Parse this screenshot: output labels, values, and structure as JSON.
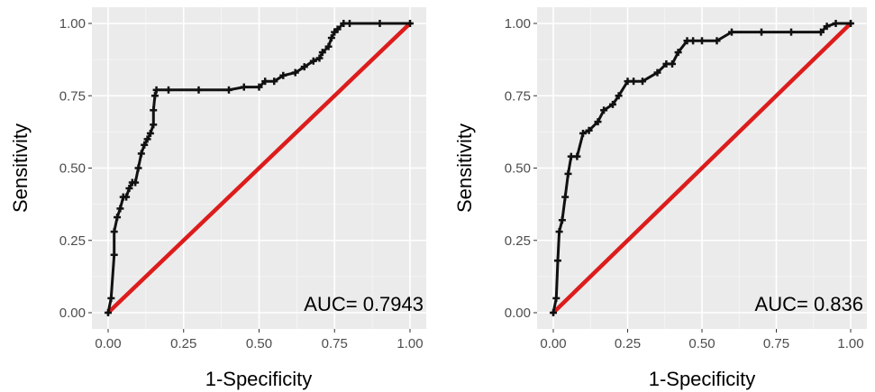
{
  "chart_data": [
    {
      "type": "line",
      "xlabel": "1-Specificity",
      "ylabel": "Sensitivity",
      "xlim": [
        0,
        1
      ],
      "ylim": [
        0,
        1
      ],
      "xticks": [
        "0.00",
        "0.25",
        "0.50",
        "0.75",
        "1.00"
      ],
      "yticks": [
        "0.00",
        "0.25",
        "0.50",
        "0.75",
        "1.00"
      ],
      "grid": true,
      "annotation": "AUC= 0.7943",
      "series": [
        {
          "color": "#111111",
          "marker": "plus",
          "x": [
            0.0,
            0.01,
            0.02,
            0.02,
            0.03,
            0.04,
            0.05,
            0.06,
            0.07,
            0.08,
            0.09,
            0.1,
            0.11,
            0.12,
            0.13,
            0.14,
            0.15,
            0.15,
            0.155,
            0.16,
            0.2,
            0.3,
            0.4,
            0.45,
            0.5,
            0.52,
            0.55,
            0.58,
            0.62,
            0.65,
            0.68,
            0.7,
            0.71,
            0.73,
            0.74,
            0.75,
            0.76,
            0.78,
            0.8,
            0.9,
            1.0
          ],
          "y": [
            0.0,
            0.05,
            0.2,
            0.28,
            0.33,
            0.36,
            0.4,
            0.4,
            0.43,
            0.45,
            0.45,
            0.5,
            0.55,
            0.58,
            0.6,
            0.62,
            0.65,
            0.7,
            0.75,
            0.77,
            0.77,
            0.77,
            0.77,
            0.78,
            0.78,
            0.8,
            0.8,
            0.82,
            0.83,
            0.85,
            0.87,
            0.88,
            0.9,
            0.92,
            0.95,
            0.97,
            0.98,
            1.0,
            1.0,
            1.0,
            1.0
          ]
        },
        {
          "color": "#dd1c1c",
          "x": [
            0,
            1
          ],
          "y": [
            0,
            1
          ]
        }
      ]
    },
    {
      "type": "line",
      "xlabel": "1-Specificity",
      "ylabel": "Sensitivity",
      "xlim": [
        0,
        1
      ],
      "ylim": [
        0,
        1
      ],
      "xticks": [
        "0.00",
        "0.25",
        "0.50",
        "0.75",
        "1.00"
      ],
      "yticks": [
        "0.00",
        "0.25",
        "0.50",
        "0.75",
        "1.00"
      ],
      "grid": true,
      "annotation": "AUC= 0.836",
      "series": [
        {
          "color": "#111111",
          "marker": "plus",
          "x": [
            0.0,
            0.01,
            0.015,
            0.02,
            0.03,
            0.04,
            0.05,
            0.06,
            0.08,
            0.1,
            0.12,
            0.15,
            0.17,
            0.2,
            0.22,
            0.25,
            0.27,
            0.3,
            0.35,
            0.38,
            0.4,
            0.42,
            0.45,
            0.47,
            0.5,
            0.55,
            0.6,
            0.7,
            0.8,
            0.9,
            0.92,
            0.95,
            1.0
          ],
          "y": [
            0.0,
            0.05,
            0.18,
            0.28,
            0.32,
            0.4,
            0.48,
            0.54,
            0.54,
            0.62,
            0.63,
            0.66,
            0.7,
            0.72,
            0.75,
            0.8,
            0.8,
            0.8,
            0.83,
            0.86,
            0.86,
            0.9,
            0.94,
            0.94,
            0.94,
            0.94,
            0.97,
            0.97,
            0.97,
            0.97,
            0.99,
            1.0,
            1.0
          ]
        },
        {
          "color": "#dd1c1c",
          "x": [
            0,
            1
          ],
          "y": [
            0,
            1
          ]
        }
      ]
    }
  ]
}
